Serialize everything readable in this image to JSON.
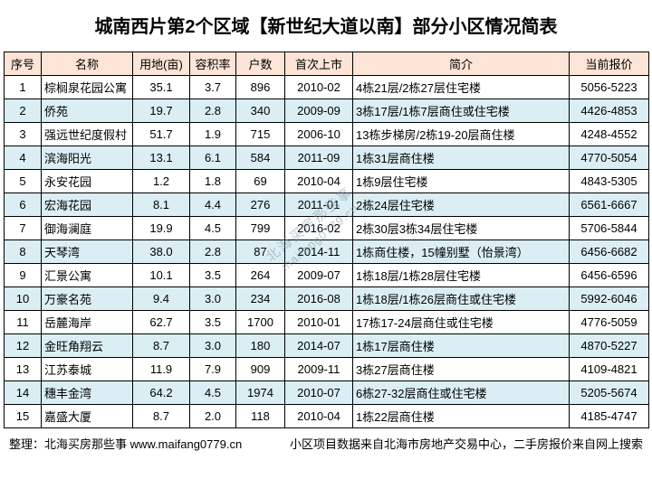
{
  "title": "城南西片第2个区域【新世纪大道以南】部分小区情况简表",
  "table": {
    "columns": [
      "序号",
      "名称",
      "用地(亩)",
      "容积率",
      "户数",
      "首次上市",
      "简介",
      "当前报价"
    ],
    "rows": [
      [
        "1",
        "棕榈泉花园公寓",
        "35.1",
        "3.7",
        "896",
        "2010-02",
        "4栋21层/2栋27层住宅楼",
        "5056-5223"
      ],
      [
        "2",
        "侨苑",
        "19.7",
        "2.8",
        "340",
        "2009-09",
        "3栋17层/1栋7层商住或住宅楼",
        "4426-4853"
      ],
      [
        "3",
        "强远世纪度假村",
        "51.7",
        "1.9",
        "715",
        "2006-10",
        "13栋步梯房/2栋19-20层商住楼",
        "4248-4552"
      ],
      [
        "4",
        "滨海阳光",
        "13.1",
        "6.1",
        "584",
        "2011-09",
        "1栋31层商住楼",
        "4770-5054"
      ],
      [
        "5",
        "永安花园",
        "1.2",
        "1.8",
        "69",
        "2010-04",
        "1栋9层住宅楼",
        "4843-5305"
      ],
      [
        "6",
        "宏海花园",
        "8.1",
        "4.4",
        "276",
        "2011-01",
        "2栋24层住宅楼",
        "6561-6667"
      ],
      [
        "7",
        "御海澜庭",
        "19.9",
        "4.5",
        "799",
        "2016-02",
        "2栋30层3栋34层住宅楼",
        "5706-5844"
      ],
      [
        "8",
        "天琴湾",
        "38.0",
        "2.8",
        "87",
        "2014-11",
        "1栋商住楼，15幢别墅（怡景湾）",
        "6456-6682"
      ],
      [
        "9",
        "汇景公寓",
        "10.1",
        "3.5",
        "264",
        "2009-07",
        "1栋18层/1栋28层住宅楼",
        "6456-6596"
      ],
      [
        "10",
        "万豪名苑",
        "9.4",
        "3.0",
        "234",
        "2016-08",
        "1栋18层/1栋26层商住或住宅楼",
        "5992-6046"
      ],
      [
        "11",
        "岳麓海岸",
        "62.7",
        "3.5",
        "1700",
        "2010-01",
        "17栋17-24层商住或住宅楼",
        "4776-5059"
      ],
      [
        "12",
        "金旺角翔云",
        "8.7",
        "3.0",
        "180",
        "2014-07",
        "1栋17层商住楼",
        "4870-5227"
      ],
      [
        "13",
        "江苏泰城",
        "11.9",
        "7.9",
        "909",
        "2009-11",
        "3栋27层商住楼",
        "4109-4821"
      ],
      [
        "14",
        "穗丰金湾",
        "64.2",
        "4.5",
        "1974",
        "2010-07",
        "6栋27-32层商住或住宅楼",
        "5205-5674"
      ],
      [
        "15",
        "嘉盛大厦",
        "8.7",
        "2.0",
        "118",
        "2010-04",
        "1栋22层商住楼",
        "4185-4747"
      ]
    ]
  },
  "watermark": {
    "line1": "北海买房那些事",
    "line2": "maifang0779.cn"
  },
  "footer": {
    "left": "整理：北海买房那些事 www.maifang0779.cn",
    "right": "小区项目数据来自北海市房地产交易中心，二手房报价来自网上搜索"
  },
  "colors": {
    "header_bg": "#FCE4D6",
    "stripe_bg": "#DAEEF3",
    "border": "#000000"
  }
}
